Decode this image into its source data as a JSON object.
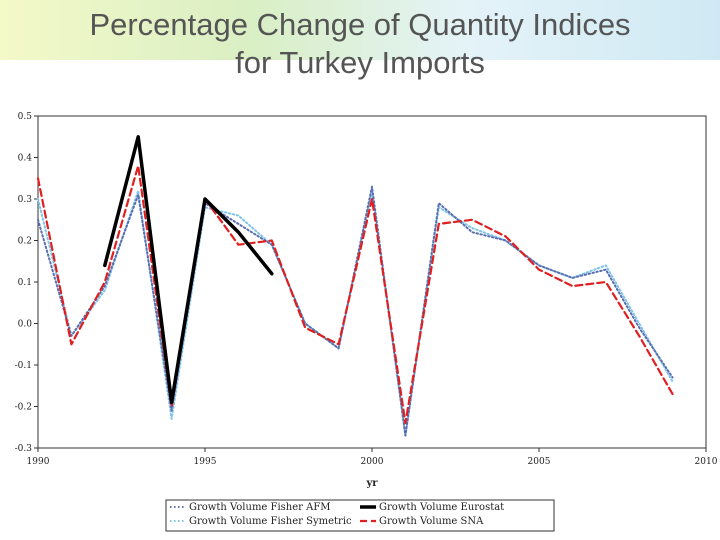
{
  "header": {
    "title_line1": "Percentage Change of Quantity Indices",
    "title_line2": "for Turkey Imports"
  },
  "chart_data": {
    "type": "line",
    "title": "Percentage Change of Quantity Indices for Turkey Imports",
    "xlabel": "yr",
    "ylabel": "",
    "xlim": [
      1990,
      2010
    ],
    "ylim": [
      -0.3,
      0.5
    ],
    "xticks": [
      1990,
      1995,
      2000,
      2005,
      2010
    ],
    "yticks": [
      -0.3,
      -0.2,
      -0.1,
      0.0,
      0.1,
      0.2,
      0.3,
      0.4,
      0.5
    ],
    "ytick_labels": [
      "-0.3",
      "-0.2",
      "-0.1",
      "0.0",
      "0.1",
      "0.2",
      "0.3",
      "0.4",
      "0.5"
    ],
    "grid": false,
    "legend_position": "bottom",
    "series": [
      {
        "name": "Growth Volume Fisher AFM",
        "color": "#5a6fb0",
        "style": "dotted",
        "x": [
          1990,
          1991,
          1992,
          1993,
          1994,
          1995,
          1996,
          1997,
          1998,
          1999,
          2000,
          2001,
          2002,
          2003,
          2004,
          2005,
          2006,
          2007,
          2008,
          2009
        ],
        "y": [
          0.25,
          -0.03,
          0.09,
          0.31,
          -0.21,
          0.29,
          0.24,
          0.19,
          0.0,
          -0.06,
          0.33,
          -0.27,
          0.29,
          0.22,
          0.2,
          0.14,
          0.11,
          0.13,
          -0.01,
          -0.13
        ]
      },
      {
        "name": "Growth Volume Fisher Symetric",
        "color": "#7fc4e8",
        "style": "dotted",
        "x": [
          1990,
          1991,
          1992,
          1993,
          1994,
          1995,
          1996,
          1997,
          1998,
          1999,
          2000,
          2001,
          2002,
          2003,
          2004,
          2005,
          2006,
          2007,
          2008,
          2009
        ],
        "y": [
          0.3,
          -0.03,
          0.08,
          0.32,
          -0.23,
          0.28,
          0.26,
          0.19,
          0.0,
          -0.06,
          0.32,
          -0.27,
          0.28,
          0.23,
          0.2,
          0.14,
          0.11,
          0.14,
          0.0,
          -0.14
        ]
      },
      {
        "name": "Growth Volume Eurostat",
        "color": "#000000",
        "style": "solid",
        "x": [
          1992,
          1993,
          1994,
          1995,
          1996,
          1997
        ],
        "y": [
          0.14,
          0.45,
          -0.19,
          0.3,
          0.22,
          0.12
        ]
      },
      {
        "name": "Growth Volume SNA",
        "color": "#e02020",
        "style": "dashed",
        "x": [
          1990,
          1991,
          1992,
          1993,
          1994,
          1995,
          1996,
          1997,
          1998,
          1999,
          2000,
          2001,
          2002,
          2003,
          2004,
          2005,
          2006,
          2007,
          2008,
          2009
        ],
        "y": [
          0.35,
          -0.05,
          0.1,
          0.38,
          -0.2,
          0.3,
          0.19,
          0.2,
          -0.01,
          -0.05,
          0.3,
          -0.24,
          0.24,
          0.25,
          0.21,
          0.13,
          0.09,
          0.1,
          -0.03,
          -0.17
        ]
      }
    ]
  }
}
